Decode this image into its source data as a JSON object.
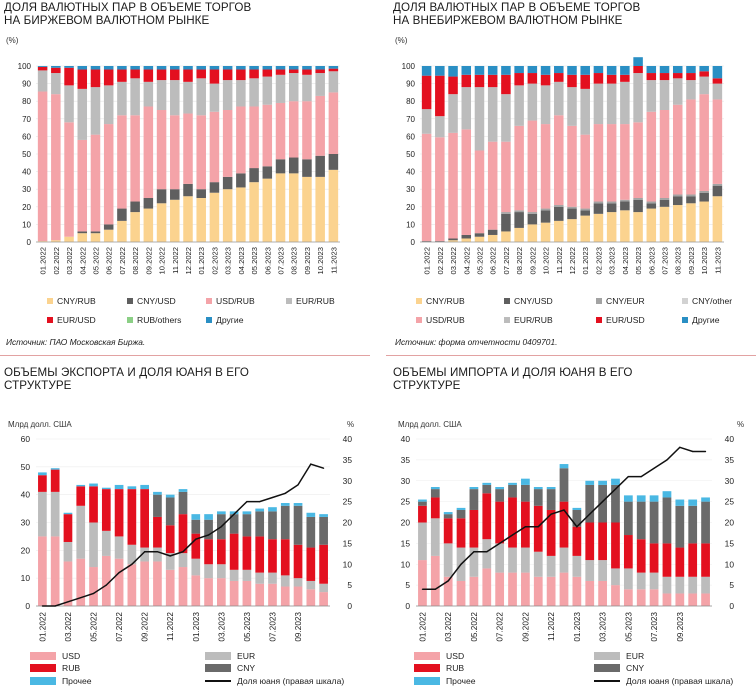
{
  "colors": {
    "cny_rub": "#fbd38f",
    "cny_usd": "#5f5f5f",
    "usd_rub": "#f4a3a8",
    "eur_rub": "#bcbcbc",
    "eur_usd": "#e3101f",
    "rub_others": "#8bcf85",
    "other": "#2a8fc4",
    "cny_eur": "#a3a3a3",
    "cny_other": "#d2d2d2",
    "usd_bar": "#f4a3a8",
    "eur_bar": "#bcbcbc",
    "rub_bar": "#e3101f",
    "cny_bar": "#6a6a6a",
    "prochee_bar": "#4ab8e3",
    "line": "#111111",
    "sep": "#e2a2a2"
  },
  "panels": {
    "p1": {
      "title_line1": "ДОЛЯ ВАЛЮТНЫХ ПАР В ОБЪЕМЕ ТОРГОВ",
      "title_line2": "НА БИРЖЕВОМ ВАЛЮТНОМ РЫНКЕ",
      "unit": "(%)",
      "source": "Источник: ПАО Московская Биржа.",
      "legend": {
        "cny_rub": "CNY/RUB",
        "cny_usd": "CNY/USD",
        "usd_rub": "USD/RUB",
        "eur_rub": "EUR/RUB",
        "eur_usd": "EUR/USD",
        "rub_others": "RUB/others",
        "other": "Другие"
      }
    },
    "p2": {
      "title_line1": "ДОЛЯ ВАЛЮТНЫХ ПАР В ОБЪЕМЕ ТОРГОВ",
      "title_line2": "НА ВНЕБИРЖЕВОМ ВАЛЮТНОМ РЫНКЕ",
      "unit": "(%)",
      "source": "Источник: форма отчетности 0409701.",
      "legend": {
        "cny_rub": "CNY/RUB",
        "cny_usd": "CNY/USD",
        "cny_eur": "CNY/EUR",
        "cny_other": "CNY/other",
        "usd_rub": "USD/RUB",
        "eur_rub": "EUR/RUB",
        "eur_usd": "EUR/USD",
        "other": "Другие"
      }
    },
    "p3": {
      "title_line1": "ОБЪЕМЫ ЭКСПОРТА И ДОЛЯ ЮАНЯ В ЕГО",
      "title_line2": "СТРУКТУРЕ",
      "left_unit": "Млрд долл. США",
      "right_unit": "%",
      "legend": {
        "usd": "USD",
        "eur": "EUR",
        "rub": "RUB",
        "cny": "CNY",
        "prochee": "Прочее",
        "line": "Доля юаня (правая шкала)"
      }
    },
    "p4": {
      "title_line1": "ОБЪЕМЫ ИМПОРТА И ДОЛЯ ЮАНЯ В ЕГО",
      "title_line2": "СТРУКТУРЕ",
      "left_unit": "Млрд долл. США",
      "right_unit": "%",
      "legend": {
        "usd": "USD",
        "eur": "EUR",
        "rub": "RUB",
        "cny": "CNY",
        "prochee": "Прочее",
        "line": "Доля юаня (правая шкала)"
      }
    }
  },
  "chart_data": [
    {
      "id": "p1",
      "type": "bar",
      "stacked": true,
      "title": "ДОЛЯ ВАЛЮТНЫХ ПАР В ОБЪЕМЕ ТОРГОВ НА БИРЖЕВОМ ВАЛЮТНОМ РЫНКЕ",
      "ylabel": "(%)",
      "ylim": [
        0,
        100
      ],
      "yticks": [
        0,
        10,
        20,
        30,
        40,
        50,
        60,
        70,
        80,
        90,
        100
      ],
      "xtick_labels": [
        "01.2022",
        "02.2022",
        "03.2022",
        "04.2022",
        "05.2022",
        "06.2022",
        "07.2022",
        "08.2022",
        "09.2022",
        "10.2022",
        "11.2022",
        "12.2022",
        "01.2023",
        "02.2023",
        "03.2023",
        "04.2023",
        "05.2023",
        "06.2023",
        "07.2023",
        "08.2023",
        "09.2023",
        "10.2023",
        "11.2023"
      ],
      "series": [
        {
          "name": "CNY/RUB",
          "key": "cny_rub",
          "values": [
            0.5,
            1,
            3,
            5,
            5,
            7,
            12,
            17,
            19,
            22,
            24,
            26,
            25,
            28,
            30,
            31,
            34,
            36,
            39,
            39,
            37,
            37,
            41
          ]
        },
        {
          "name": "CNY/USD",
          "key": "cny_usd",
          "values": [
            0,
            0,
            0,
            1,
            1,
            3,
            7,
            6,
            6,
            8,
            6,
            7,
            5,
            6,
            7,
            8,
            8,
            7,
            8,
            9,
            10,
            12,
            9
          ]
        },
        {
          "name": "USD/RUB",
          "key": "usd_rub",
          "values": [
            85,
            83,
            65,
            52,
            55,
            57,
            53,
            49,
            52,
            45,
            42,
            40,
            42,
            40,
            38,
            38,
            35,
            35,
            32,
            32,
            33,
            34,
            35
          ]
        },
        {
          "name": "EUR/RUB",
          "key": "eur_rub",
          "values": [
            12,
            12,
            21,
            29,
            27,
            22,
            19,
            21,
            14,
            17,
            20,
            18,
            21,
            16,
            17,
            15,
            16,
            16,
            16,
            16,
            15,
            13,
            12
          ]
        },
        {
          "name": "EUR/USD",
          "key": "eur_usd",
          "values": [
            2,
            3,
            10,
            11,
            10,
            9,
            7,
            5,
            7,
            6,
            6,
            7,
            5,
            8,
            6,
            6,
            5,
            4,
            3,
            2,
            3,
            2,
            1.5
          ]
        },
        {
          "name": "RUB/others",
          "key": "rub_others",
          "values": [
            0,
            0,
            0,
            0,
            0,
            0,
            0,
            0,
            0,
            0,
            0,
            0,
            0,
            0,
            0,
            0,
            0,
            0,
            0,
            0,
            0,
            0,
            0
          ]
        },
        {
          "name": "Другие",
          "key": "other",
          "values": [
            0.5,
            1,
            1,
            2,
            2,
            2,
            2,
            2,
            2,
            2,
            2,
            2,
            2,
            2,
            2,
            2,
            2,
            2,
            2,
            2,
            2,
            2,
            1.5
          ]
        }
      ]
    },
    {
      "id": "p2",
      "type": "bar",
      "stacked": true,
      "title": "ДОЛЯ ВАЛЮТНЫХ ПАР В ОБЪЕМЕ ТОРГОВ НА ВНЕБИРЖЕВОМ ВАЛЮТНОМ РЫНКЕ",
      "ylabel": "(%)",
      "ylim": [
        0,
        100
      ],
      "yticks": [
        0,
        10,
        20,
        30,
        40,
        50,
        60,
        70,
        80,
        90,
        100
      ],
      "xtick_labels": [
        "01.2022",
        "02.2022",
        "03.2022",
        "04.2022",
        "05.2022",
        "06.2022",
        "07.2022",
        "08.2022",
        "09.2022",
        "10.2022",
        "11.2022",
        "12.2022",
        "01.2023",
        "02.2023",
        "03.2023",
        "04.2023",
        "05.2023",
        "06.2023",
        "07.2023",
        "08.2023",
        "09.2023",
        "10.2023",
        "11.2023"
      ],
      "series": [
        {
          "name": "CNY/RUB",
          "key": "cny_rub",
          "values": [
            0,
            0,
            1,
            2,
            3,
            4,
            6,
            8,
            10,
            11,
            12,
            13,
            15,
            16,
            17,
            18,
            17,
            19,
            20,
            21,
            22,
            23,
            26
          ]
        },
        {
          "name": "CNY/USD",
          "key": "cny_usd",
          "values": [
            0.5,
            0.5,
            1,
            2,
            2,
            3,
            10,
            9,
            6,
            7,
            8,
            6,
            3,
            6,
            5,
            5,
            7,
            3,
            4,
            5,
            4,
            5,
            6
          ]
        },
        {
          "name": "CNY/EUR",
          "key": "cny_eur",
          "values": [
            0,
            0,
            0,
            0,
            0,
            0,
            1,
            1,
            1,
            1,
            1,
            1,
            1,
            1,
            1,
            1,
            1,
            1,
            1,
            1,
            1,
            1,
            1
          ]
        },
        {
          "name": "CNY/other",
          "key": "cny_other",
          "values": [
            0,
            0,
            0,
            0,
            0,
            0,
            0,
            0,
            0,
            0,
            0,
            0,
            0,
            0,
            0,
            0,
            0,
            0,
            0,
            0,
            0,
            0,
            0
          ]
        },
        {
          "name": "USD/RUB",
          "key": "usd_rub",
          "values": [
            61,
            59,
            60,
            60,
            47,
            50,
            40,
            48,
            52,
            48,
            51,
            46,
            42,
            44,
            44,
            43,
            43,
            51,
            50,
            51,
            54,
            55,
            48
          ]
        },
        {
          "name": "EUR/RUB",
          "key": "eur_rub",
          "values": [
            14,
            12,
            22,
            24,
            36,
            31,
            27,
            23,
            21,
            22,
            19,
            22,
            26,
            23,
            23,
            24,
            28,
            18,
            17,
            15,
            11,
            10,
            9
          ]
        },
        {
          "name": "EUR/USD",
          "key": "eur_usd",
          "values": [
            19,
            23,
            10,
            7,
            7,
            7,
            11,
            7,
            6,
            6,
            5,
            7,
            8,
            6,
            5,
            4,
            4,
            4,
            4,
            3,
            4,
            3,
            3
          ]
        },
        {
          "name": "Другие",
          "key": "other",
          "values": [
            5.5,
            5.5,
            6,
            5,
            5,
            5,
            5,
            4,
            4,
            5,
            4,
            5,
            5,
            4,
            5,
            5,
            5,
            4,
            4,
            4,
            4,
            3,
            7
          ]
        }
      ]
    },
    {
      "id": "p3",
      "type": "bar",
      "stacked": true,
      "title": "ОБЪЕМЫ ЭКСПОРТА И ДОЛЯ ЮАНЯ В ЕГО СТРУКТУРЕ",
      "ylabel": "Млрд долл. США",
      "y2label": "%",
      "ylim": [
        0,
        60
      ],
      "y2lim": [
        0,
        40
      ],
      "yticks": [
        0,
        10,
        20,
        30,
        40,
        50,
        60
      ],
      "y2ticks": [
        0,
        5,
        10,
        15,
        20,
        25,
        30,
        35,
        40
      ],
      "categories": [
        "01.2022",
        "02.2022",
        "03.2022",
        "04.2022",
        "05.2022",
        "06.2022",
        "07.2022",
        "08.2022",
        "09.2022",
        "10.2022",
        "11.2022",
        "12.2022",
        "01.2023",
        "02.2023",
        "03.2023",
        "04.2023",
        "05.2023",
        "06.2023",
        "07.2023",
        "08.2023",
        "09.2023",
        "10.2023",
        "11.2023"
      ],
      "xtick_labels": [
        "01.2022",
        "03.2022",
        "05.2022",
        "07.2022",
        "09.2022",
        "11.2022",
        "01.2023",
        "03.2023",
        "05.2023",
        "07.2023",
        "09.2023"
      ],
      "series": [
        {
          "name": "USD",
          "key": "usd_bar",
          "values": [
            25,
            25,
            16,
            17,
            14,
            18,
            17,
            15,
            16,
            16,
            13,
            14,
            11,
            10,
            10,
            9,
            9,
            8,
            8,
            7,
            7,
            6,
            5
          ]
        },
        {
          "name": "EUR",
          "key": "eur_bar",
          "values": [
            16,
            16,
            7,
            19,
            16,
            9,
            8,
            7,
            5,
            5,
            6,
            5,
            6,
            5,
            5,
            4,
            4,
            4,
            4,
            4,
            3,
            3,
            3
          ]
        },
        {
          "name": "RUB",
          "key": "rub_bar",
          "values": [
            6,
            8,
            10,
            7,
            13,
            15,
            17,
            20,
            21,
            11,
            10,
            14,
            9,
            9,
            9,
            13,
            12,
            13,
            12,
            13,
            12,
            12,
            14
          ]
        },
        {
          "name": "CNY",
          "key": "cny_bar",
          "values": [
            0,
            0,
            0,
            0,
            0,
            0,
            0,
            0,
            0,
            8,
            10,
            8,
            5,
            7,
            9,
            7,
            8,
            9,
            10,
            12,
            14,
            11,
            10
          ]
        },
        {
          "name": "Прочее",
          "key": "prochee_bar",
          "values": [
            1,
            0.5,
            0.5,
            0.5,
            1,
            0.5,
            1.5,
            1,
            1.5,
            1,
            1,
            1,
            2,
            2,
            1,
            1,
            1,
            1,
            1.5,
            1,
            1,
            1.5,
            1
          ]
        }
      ],
      "line": {
        "name": "Доля юаня (правая шкала)",
        "values": [
          0,
          0,
          1,
          2,
          3,
          5,
          8,
          10,
          13,
          13,
          12,
          13,
          16,
          17,
          19,
          22,
          25,
          25,
          26,
          27,
          29,
          34,
          33
        ]
      }
    },
    {
      "id": "p4",
      "type": "bar",
      "stacked": true,
      "title": "ОБЪЕМЫ ИМПОРТА И ДОЛЯ ЮАНЯ В ЕГО СТРУКТУРЕ",
      "ylabel": "Млрд долл. США",
      "y2label": "%",
      "ylim": [
        0,
        40
      ],
      "y2lim": [
        0,
        40
      ],
      "yticks": [
        0,
        5,
        10,
        15,
        20,
        25,
        30,
        35,
        40
      ],
      "y2ticks": [
        0,
        5,
        10,
        15,
        20,
        25,
        30,
        35,
        40
      ],
      "categories": [
        "01.2022",
        "02.2022",
        "03.2022",
        "04.2022",
        "05.2022",
        "06.2022",
        "07.2022",
        "08.2022",
        "09.2022",
        "10.2022",
        "11.2022",
        "12.2022",
        "01.2023",
        "02.2023",
        "03.2023",
        "04.2023",
        "05.2023",
        "06.2023",
        "07.2023",
        "08.2023",
        "09.2023",
        "10.2023",
        "11.2023"
      ],
      "xtick_labels": [
        "01.2022",
        "03.2022",
        "05.2022",
        "07.2022",
        "09.2022",
        "11.2022",
        "01.2023",
        "03.2023",
        "05.2023",
        "07.2023",
        "09.2023"
      ],
      "series": [
        {
          "name": "USD",
          "key": "usd_bar",
          "values": [
            11,
            12,
            7,
            6,
            7,
            9,
            8,
            8,
            8,
            7,
            7,
            8,
            7,
            6,
            6,
            5,
            4,
            4,
            4,
            3,
            3,
            3,
            3
          ]
        },
        {
          "name": "EUR",
          "key": "eur_bar",
          "values": [
            9,
            9,
            8,
            8,
            7,
            7,
            7,
            6,
            6,
            6,
            5,
            6,
            5,
            5,
            5,
            4,
            5,
            4,
            4,
            4,
            4,
            4,
            4
          ]
        },
        {
          "name": "RUB",
          "key": "rub_bar",
          "values": [
            4,
            5,
            6,
            7,
            9,
            11,
            10,
            12,
            11,
            11,
            11,
            11,
            7,
            9,
            9,
            11,
            8,
            8,
            7,
            8,
            7,
            8,
            8
          ]
        },
        {
          "name": "CNY",
          "key": "cny_bar",
          "values": [
            1,
            2,
            1,
            2,
            5,
            2,
            3,
            3,
            4,
            4,
            5,
            8,
            4,
            9,
            9,
            9,
            8,
            9,
            10,
            11,
            10,
            9,
            10
          ]
        },
        {
          "name": "Прочее",
          "key": "prochee_bar",
          "values": [
            0.5,
            0.5,
            0.5,
            0.5,
            0.5,
            0.5,
            0.5,
            0.5,
            1.5,
            0.5,
            0.5,
            1,
            0.5,
            1,
            1,
            1.5,
            1.5,
            1.5,
            1.5,
            1.5,
            1.5,
            1.5,
            1
          ]
        }
      ],
      "line": {
        "name": "Доля юаня (правая шкала)",
        "values": [
          4,
          4,
          6,
          10,
          13,
          13,
          15,
          17,
          19,
          19,
          22,
          23,
          19,
          22,
          25,
          28,
          31,
          31,
          33,
          35,
          38,
          37,
          37
        ]
      }
    }
  ]
}
